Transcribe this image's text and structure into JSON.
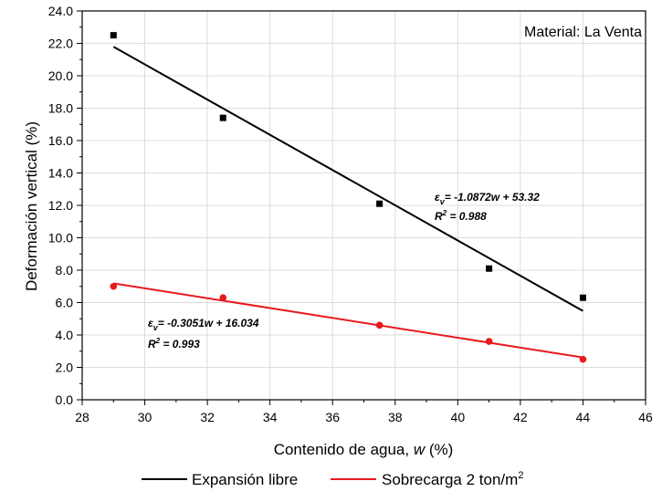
{
  "chart_data": {
    "type": "scatter",
    "x": [
      29,
      32.5,
      37.5,
      41,
      44
    ],
    "xlabel_main": "Contenido de agua, ",
    "xlabel_var": "w",
    "xlabel_unit": " (%)",
    "ylabel": "Deformación vertical (%)",
    "xlim": [
      28,
      46
    ],
    "ylim": [
      0,
      24
    ],
    "xticks": [
      28,
      30,
      32,
      34,
      36,
      38,
      40,
      42,
      44,
      46
    ],
    "yticks": [
      "0.0",
      "2.0",
      "4.0",
      "6.0",
      "8.0",
      "10.0",
      "12.0",
      "14.0",
      "16.0",
      "18.0",
      "20.0",
      "22.0",
      "24.0"
    ],
    "grid": true,
    "annotation": "Material: La Venta",
    "series": [
      {
        "name": "Expansión libre",
        "color": "#000000",
        "marker": "square",
        "x": [
          29,
          32.5,
          37.5,
          41,
          44
        ],
        "values": [
          22.5,
          17.4,
          12.1,
          8.1,
          6.3
        ],
        "fit": {
          "slope": -1.0872,
          "intercept": 53.32
        },
        "eq_prefix": "ε",
        "eq_sub": "v",
        "eq_text": "= -1.0872w + 53.32",
        "r2_text": "R",
        "r2_sup": "2",
        "r2_value": " = 0.988"
      },
      {
        "name": "Sobrecarga 2 ton/m",
        "name_sup": "2",
        "color": "#e8191c",
        "marker": "circle",
        "x": [
          29,
          32.5,
          37.5,
          41,
          44
        ],
        "values": [
          7.0,
          6.3,
          4.6,
          3.6,
          2.5
        ],
        "fit": {
          "slope": -0.3051,
          "intercept": 16.034
        },
        "eq_prefix": "ε",
        "eq_sub": "v",
        "eq_text": "= -0.3051w + 16.034",
        "r2_text": "R",
        "r2_sup": "2",
        "r2_value": " = 0.993"
      }
    ]
  }
}
